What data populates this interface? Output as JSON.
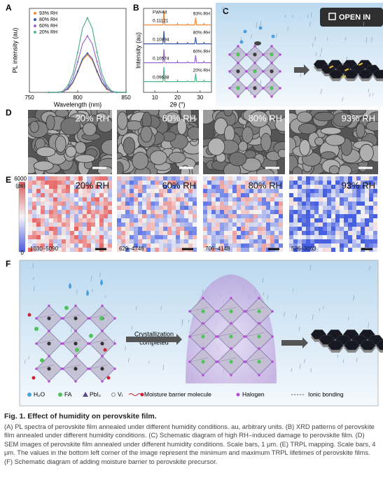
{
  "toolbar": {
    "open_button": "OPEN IN"
  },
  "chart_data": [
    {
      "type": "line",
      "panel": "A",
      "xlabel": "Wavelength (nm)",
      "ylabel": "PL intensity (au)",
      "xlim": [
        750,
        850
      ],
      "xticks": [
        750,
        800,
        850
      ],
      "ylim": [
        0,
        1
      ],
      "x": [
        770,
        775,
        780,
        785,
        790,
        795,
        800,
        805,
        810,
        815,
        820,
        825,
        830,
        835,
        840,
        845,
        850
      ],
      "series": [
        {
          "name": "93% RH",
          "color": "#f08a3c",
          "values": [
            0,
            0,
            0,
            0.01,
            0.04,
            0.12,
            0.26,
            0.41,
            0.48,
            0.41,
            0.26,
            0.12,
            0.04,
            0.01,
            0,
            0,
            0
          ]
        },
        {
          "name": "80% RH",
          "color": "#3b5aa8",
          "values": [
            0,
            0,
            0,
            0.01,
            0.05,
            0.13,
            0.27,
            0.43,
            0.5,
            0.43,
            0.27,
            0.13,
            0.05,
            0.01,
            0,
            0,
            0
          ]
        },
        {
          "name": "60% RH",
          "color": "#9a6ad0",
          "values": [
            0,
            0,
            0,
            0.01,
            0.06,
            0.18,
            0.39,
            0.62,
            0.72,
            0.62,
            0.39,
            0.18,
            0.06,
            0.01,
            0,
            0,
            0
          ]
        },
        {
          "name": "20% RH",
          "color": "#4fb58a",
          "values": [
            0,
            0,
            0,
            0.02,
            0.09,
            0.24,
            0.51,
            0.82,
            0.95,
            0.82,
            0.51,
            0.24,
            0.09,
            0.02,
            0,
            0,
            0
          ]
        }
      ]
    },
    {
      "type": "line",
      "panel": "B",
      "xlabel": "2θ (°)",
      "ylabel": "Intensity (au)",
      "annotation": "FWHM",
      "xlim": [
        5,
        35
      ],
      "xticks": [
        10,
        20,
        30
      ],
      "ylim": [
        0,
        1
      ],
      "x": [
        5,
        13.6,
        14,
        14.4,
        19.8,
        20,
        20.2,
        24.2,
        24.5,
        24.8,
        27.6,
        28,
        28.4,
        31.4,
        31.7,
        32,
        35
      ],
      "series": [
        {
          "name": "93% RH",
          "color": "#f08a3c",
          "fwhm": "0.11121",
          "values": [
            0.02,
            0.02,
            0.9,
            0.02,
            0.02,
            0.12,
            0.02,
            0.02,
            0.08,
            0.02,
            0.02,
            0.5,
            0.02,
            0.02,
            0.1,
            0.02,
            0.02
          ]
        },
        {
          "name": "80% RH",
          "color": "#3b5aa8",
          "fwhm": "0.10894",
          "values": [
            0.02,
            0.02,
            0.85,
            0.02,
            0.02,
            0.14,
            0.02,
            0.02,
            0.09,
            0.02,
            0.02,
            0.45,
            0.02,
            0.02,
            0.1,
            0.02,
            0.02
          ]
        },
        {
          "name": "60% RH",
          "color": "#9a6ad0",
          "fwhm": "0.10574",
          "values": [
            0.02,
            0.02,
            0.9,
            0.02,
            0.02,
            0.12,
            0.02,
            0.02,
            0.08,
            0.02,
            0.02,
            0.5,
            0.02,
            0.02,
            0.11,
            0.02,
            0.02
          ]
        },
        {
          "name": "20% RH",
          "color": "#4fb58a",
          "fwhm": "0.09638",
          "values": [
            0.02,
            0.02,
            0.95,
            0.02,
            0.02,
            0.1,
            0.02,
            0.02,
            0.07,
            0.02,
            0.02,
            0.55,
            0.02,
            0.02,
            0.1,
            0.02,
            0.02
          ]
        }
      ]
    }
  ],
  "panels": {
    "C": {
      "label": "C"
    },
    "D": {
      "label": "D",
      "images": [
        "20% RH",
        "60% RH",
        "80% RH",
        "93% RH"
      ]
    },
    "E": {
      "label": "E",
      "colorbar": {
        "max": "6000",
        "unit": "(ps)",
        "min": "0"
      },
      "images": [
        "20% RH",
        "60% RH",
        "80% RH",
        "93% RH"
      ],
      "ranges": [
        "1030–5090",
        "629–4746",
        "706–4148",
        "526–3063"
      ]
    },
    "F": {
      "label": "F",
      "arrow_text": [
        "Crystallization",
        "completed"
      ],
      "legend": [
        "H₂O",
        "FA",
        "PbI₂",
        "Vᵢ",
        "Moisture barrier molecule",
        "Halogen",
        "Ionic bonding"
      ]
    }
  },
  "caption": {
    "title": "Fig. 1. Effect of humidity on perovskite film.",
    "body": "(A) PL spectra of perovskite film annealed under different humidity conditions. au, arbitrary units. (B) XRD patterns of perovskite film annealed under different humidity conditions. (C) Schematic diagram of high RH–induced damage to perovskite film. (D) SEM images of perovskite film annealed under different humidity conditions. Scale bars, 1 μm. (E) TRPL mapping. Scale bars, 4 μm. The values in the bottom left corner of the image represent the minimum and maximum TRPL lifetimes of perovskite films. (F) Schematic diagram of adding moisture barrier to perovskite precursor."
  }
}
